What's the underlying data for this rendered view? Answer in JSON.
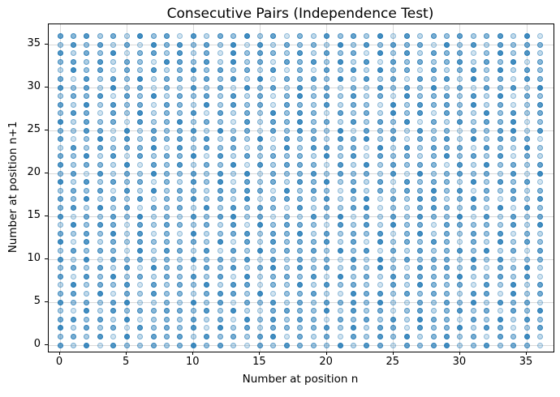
{
  "chart_data": {
    "type": "scatter",
    "title": "Consecutive Pairs (Independence Test)",
    "xlabel": "Number at position n",
    "ylabel": "Number at position n+1",
    "x_range": [
      0,
      36
    ],
    "y_range": [
      0,
      36
    ],
    "x_ticks": [
      0,
      5,
      10,
      15,
      20,
      25,
      30,
      35
    ],
    "y_ticks": [
      0,
      5,
      10,
      15,
      20,
      25,
      30,
      35
    ],
    "grid": true,
    "legend": "none",
    "marker_color": "#1f77b4",
    "grid_color": "#d9d9d9",
    "axis_color": "#000000",
    "points_note": "37x37 grid of semi-transparent blue markers, one at every integer pair (n, n+1) from 0 to 36; darkness encodes how often that consecutive pair occurred (overlapping alpha markers)",
    "intensity_note": "rows listed top-to-bottom for y=36 down to y=0; each row has 37 digits (x=0..36); digit 0=lightest ... 9=darkest, opacity ~= 0.12 + digit*0.08",
    "intensity_rows": [
      "7583629471826493715284739182647358291",
      "3847261958473918264529384756193827465",
      "8264915738261947538274619382756149382",
      "5738264197482936175839281746358274915",
      "2947163825947362815173829461725839274",
      "6183749265374829165749283617482936185",
      "8472936152836194728361528473926174829",
      "3658174926473826159473826194573829164",
      "7293846175293846175382641938574926138",
      "4861739254817263948517362948175294836",
      "9274618359364182759462837491628375914",
      "5386192745829361748539174628351647928",
      "7149283657482639174628593716482937561",
      "2837465918374615293874619283756184293",
      "6492817365918273645293817462594738162",
      "8365291748264918376518293746518294637",
      "4718263954738291645837462819357462819",
      "9283746152849173628593627184652938471",
      "3647182936527486193741826375948163725",
      "7492638154836291475382491638725941638",
      "5829371646293847518263791426853729184",
      "8163749252847936152849162738549182736",
      "2948617375362819476418382946176453829",
      "6374928151924683759273648159263748152",
      "9182637454639172846582719364851629374",
      "3746519286281739465739481627358492617",
      "8291746352946381726351829374662938145",
      "4637281955174826938472639418573716492",
      "7184936264837192564819362847559247381",
      "2936481736492871539284631729546183927",
      "5729163845268739145721968374652871936",
      "8463791252937164826375849216374928561",
      "3192846576483921675492836147258361749",
      "6847291353726194837516473829651739284",
      "9273618464819372654583927618459286137",
      "4638192757284637916261738492583617492",
      "7291843635947216385439286174792483651"
    ]
  }
}
